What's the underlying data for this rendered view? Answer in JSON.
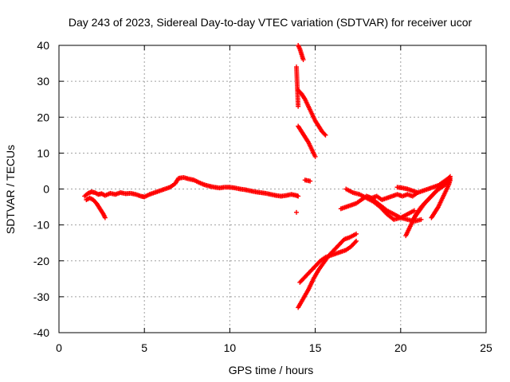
{
  "chart_data": {
    "type": "scatter",
    "title": "Day 243 of 2023, Sidereal Day-to-day VTEC variation (SDTVAR) for receiver ucor",
    "xlabel": "GPS time / hours",
    "ylabel": "SDTVAR / TECUs",
    "xlim": [
      0,
      25
    ],
    "ylim": [
      -40,
      40
    ],
    "xticks": [
      "0",
      "5",
      "10",
      "15",
      "20",
      "25"
    ],
    "yticks": [
      "-40",
      "-30",
      "-20",
      "-10",
      "0",
      "10",
      "20",
      "30",
      "40"
    ],
    "grid": true,
    "marker": "plus",
    "color": "#ff0000",
    "series": [
      {
        "x": [
          1.5,
          1.7,
          1.9,
          2.1,
          2.3,
          2.5,
          2.7,
          3.0,
          3.3,
          3.6,
          3.9,
          4.2,
          4.5,
          4.8,
          5.0,
          5.3,
          5.6,
          5.9,
          6.2,
          6.5,
          6.8,
          7.0,
          7.3,
          7.6,
          7.9,
          8.2,
          8.5,
          8.8,
          9.1,
          9.4,
          9.7,
          10.0,
          10.3,
          10.6,
          10.9,
          11.2,
          11.5,
          11.8,
          12.1,
          12.4,
          12.7,
          13.0,
          13.3,
          13.6,
          13.9,
          14.0
        ],
        "y": [
          -2.0,
          -1.2,
          -0.8,
          -1.0,
          -1.5,
          -1.3,
          -1.8,
          -1.2,
          -1.5,
          -1.0,
          -1.3,
          -1.2,
          -1.5,
          -2.0,
          -2.2,
          -1.5,
          -1.0,
          -0.5,
          0.0,
          0.5,
          1.5,
          3.0,
          3.2,
          2.8,
          2.5,
          1.8,
          1.2,
          0.8,
          0.5,
          0.3,
          0.5,
          0.5,
          0.3,
          0.0,
          -0.2,
          -0.5,
          -0.8,
          -1.0,
          -1.2,
          -1.5,
          -1.8,
          -2.0,
          -1.8,
          -1.5,
          -1.8,
          -2.0
        ]
      },
      {
        "x": [
          1.6,
          1.8,
          2.0,
          2.2,
          2.4,
          2.6,
          2.7
        ],
        "y": [
          -3.0,
          -2.5,
          -3.0,
          -4.0,
          -5.5,
          -7.0,
          -8.0
        ]
      },
      {
        "x": [
          14.0,
          14.1,
          14.2,
          14.3
        ],
        "y": [
          40.0,
          39.0,
          37.5,
          36.0
        ]
      },
      {
        "x": [
          13.9,
          14.0
        ],
        "y": [
          34.0,
          23.0
        ]
      },
      {
        "x": [
          14.0,
          14.2,
          14.4,
          14.6,
          14.8,
          15.0,
          15.2,
          15.4,
          15.6
        ],
        "y": [
          27.5,
          26.5,
          25.0,
          23.0,
          21.0,
          19.0,
          17.5,
          16.0,
          15.0
        ]
      },
      {
        "x": [
          14.0,
          14.2,
          14.4,
          14.6,
          14.8,
          15.0
        ],
        "y": [
          17.5,
          16.0,
          14.5,
          13.0,
          11.0,
          9.0
        ]
      },
      {
        "x": [
          13.9
        ],
        "y": [
          -6.5
        ]
      },
      {
        "x": [
          14.4,
          14.7
        ],
        "y": [
          2.5,
          2.2
        ]
      },
      {
        "x": [
          14.0,
          14.3,
          14.6,
          14.9,
          15.2,
          15.5,
          15.8,
          16.1,
          16.4,
          16.7,
          17.0,
          17.4
        ],
        "y": [
          -33.0,
          -30.5,
          -28.0,
          -25.0,
          -22.5,
          -20.5,
          -18.5,
          -17.0,
          -15.5,
          -14.0,
          -13.5,
          -12.5
        ]
      },
      {
        "x": [
          14.1,
          14.4,
          14.7,
          15.0,
          15.3,
          15.6,
          15.9,
          16.2,
          16.5,
          16.8,
          17.1,
          17.4
        ],
        "y": [
          -26.0,
          -24.5,
          -23.0,
          -21.5,
          -20.0,
          -19.0,
          -18.5,
          -18.0,
          -17.5,
          -17.0,
          -16.0,
          -14.5
        ]
      },
      {
        "x": [
          16.5,
          16.8,
          17.1,
          17.4,
          17.7,
          18.0,
          18.3,
          18.6,
          18.9,
          19.2,
          19.5,
          19.8,
          20.1,
          20.4,
          20.7,
          21.0
        ],
        "y": [
          -5.5,
          -5.0,
          -4.5,
          -4.0,
          -3.0,
          -2.0,
          -2.5,
          -2.0,
          -3.0,
          -2.5,
          -2.0,
          -1.5,
          -2.0,
          -1.5,
          -2.0,
          -1.0
        ]
      },
      {
        "x": [
          16.8,
          17.2,
          17.6,
          18.0,
          18.4,
          18.8,
          19.2,
          19.6,
          20.0,
          20.4,
          20.8
        ],
        "y": [
          0.0,
          -1.0,
          -1.5,
          -2.5,
          -3.5,
          -5.0,
          -7.0,
          -8.5,
          -8.0,
          -7.0,
          -6.0
        ]
      },
      {
        "x": [
          18.0,
          18.4,
          18.8,
          19.2,
          19.6,
          20.0,
          20.4,
          20.8,
          21.2
        ],
        "y": [
          -2.0,
          -3.0,
          -4.5,
          -6.0,
          -7.0,
          -8.0,
          -8.5,
          -9.0,
          -8.5
        ]
      },
      {
        "x": [
          19.8,
          20.1,
          20.4,
          20.7,
          21.0,
          21.3,
          21.6,
          21.9,
          22.2,
          22.5,
          22.8
        ],
        "y": [
          0.5,
          0.3,
          0.0,
          -0.5,
          -1.0,
          -0.5,
          0.0,
          0.5,
          1.0,
          2.0,
          3.0
        ]
      },
      {
        "x": [
          20.3,
          20.6,
          20.9,
          21.2,
          21.5,
          21.8,
          22.1,
          22.4,
          22.7,
          22.9
        ],
        "y": [
          -13.0,
          -10.0,
          -7.0,
          -5.0,
          -3.5,
          -2.0,
          -0.5,
          0.5,
          1.5,
          3.0
        ]
      },
      {
        "x": [
          20.8,
          21.1,
          21.4,
          21.7,
          22.0,
          22.3,
          22.6,
          22.9
        ],
        "y": [
          -8.0,
          -6.0,
          -4.0,
          -2.5,
          -1.0,
          0.5,
          2.0,
          3.5
        ]
      },
      {
        "x": [
          21.8,
          22.0,
          22.2,
          22.4,
          22.6,
          22.8,
          22.9
        ],
        "y": [
          -8.0,
          -6.5,
          -5.0,
          -3.0,
          -1.0,
          1.0,
          2.5
        ]
      }
    ]
  }
}
